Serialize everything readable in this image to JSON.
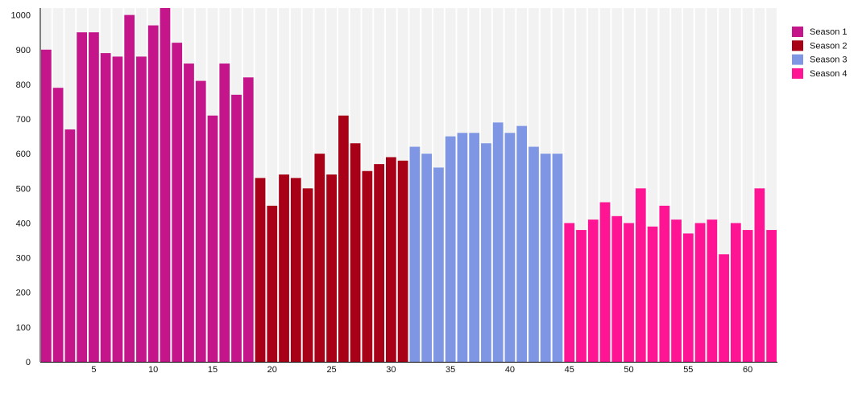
{
  "chart_data": {
    "type": "bar",
    "title": "",
    "xlabel": "",
    "ylabel": "",
    "ylim": [
      0,
      1020
    ],
    "xlim": [
      1,
      62
    ],
    "yticks": [
      0,
      100,
      200,
      300,
      400,
      500,
      600,
      700,
      800,
      900,
      1000
    ],
    "xticks": [
      5,
      10,
      15,
      20,
      25,
      30,
      35,
      40,
      45,
      50,
      55,
      60
    ],
    "grid": false,
    "background_stripes": true,
    "legend_position": "right",
    "series": [
      {
        "name": "Season 1",
        "color": "#C5158A",
        "x": [
          1,
          2,
          3,
          4,
          5,
          6,
          7,
          8,
          9,
          10,
          11,
          12,
          13,
          14,
          15,
          16,
          17,
          18
        ],
        "values": [
          900,
          790,
          670,
          950,
          950,
          890,
          880,
          1000,
          880,
          970,
          1020,
          920,
          860,
          810,
          710,
          860,
          770,
          820
        ]
      },
      {
        "name": "Season 2",
        "color": "#A80016",
        "x": [
          19,
          20,
          21,
          22,
          23,
          24,
          25,
          26,
          27,
          28,
          29,
          30,
          31
        ],
        "values": [
          530,
          450,
          540,
          530,
          500,
          600,
          540,
          710,
          630,
          550,
          570,
          590,
          580
        ]
      },
      {
        "name": "Season 3",
        "color": "#7F96E4",
        "x": [
          32,
          33,
          34,
          35,
          36,
          37,
          38,
          39,
          40,
          41,
          42,
          43,
          44
        ],
        "values": [
          620,
          600,
          560,
          650,
          660,
          660,
          630,
          690,
          660,
          680,
          620,
          600,
          600
        ]
      },
      {
        "name": "Season 4",
        "color": "#FF1493",
        "x": [
          45,
          46,
          47,
          48,
          49,
          50,
          51,
          52,
          53,
          54,
          55,
          56,
          57,
          58,
          59,
          60,
          61,
          62
        ],
        "values": [
          400,
          380,
          410,
          460,
          420,
          400,
          500,
          390,
          450,
          410,
          370,
          400,
          410,
          310,
          400,
          380,
          500,
          380
        ]
      }
    ]
  }
}
